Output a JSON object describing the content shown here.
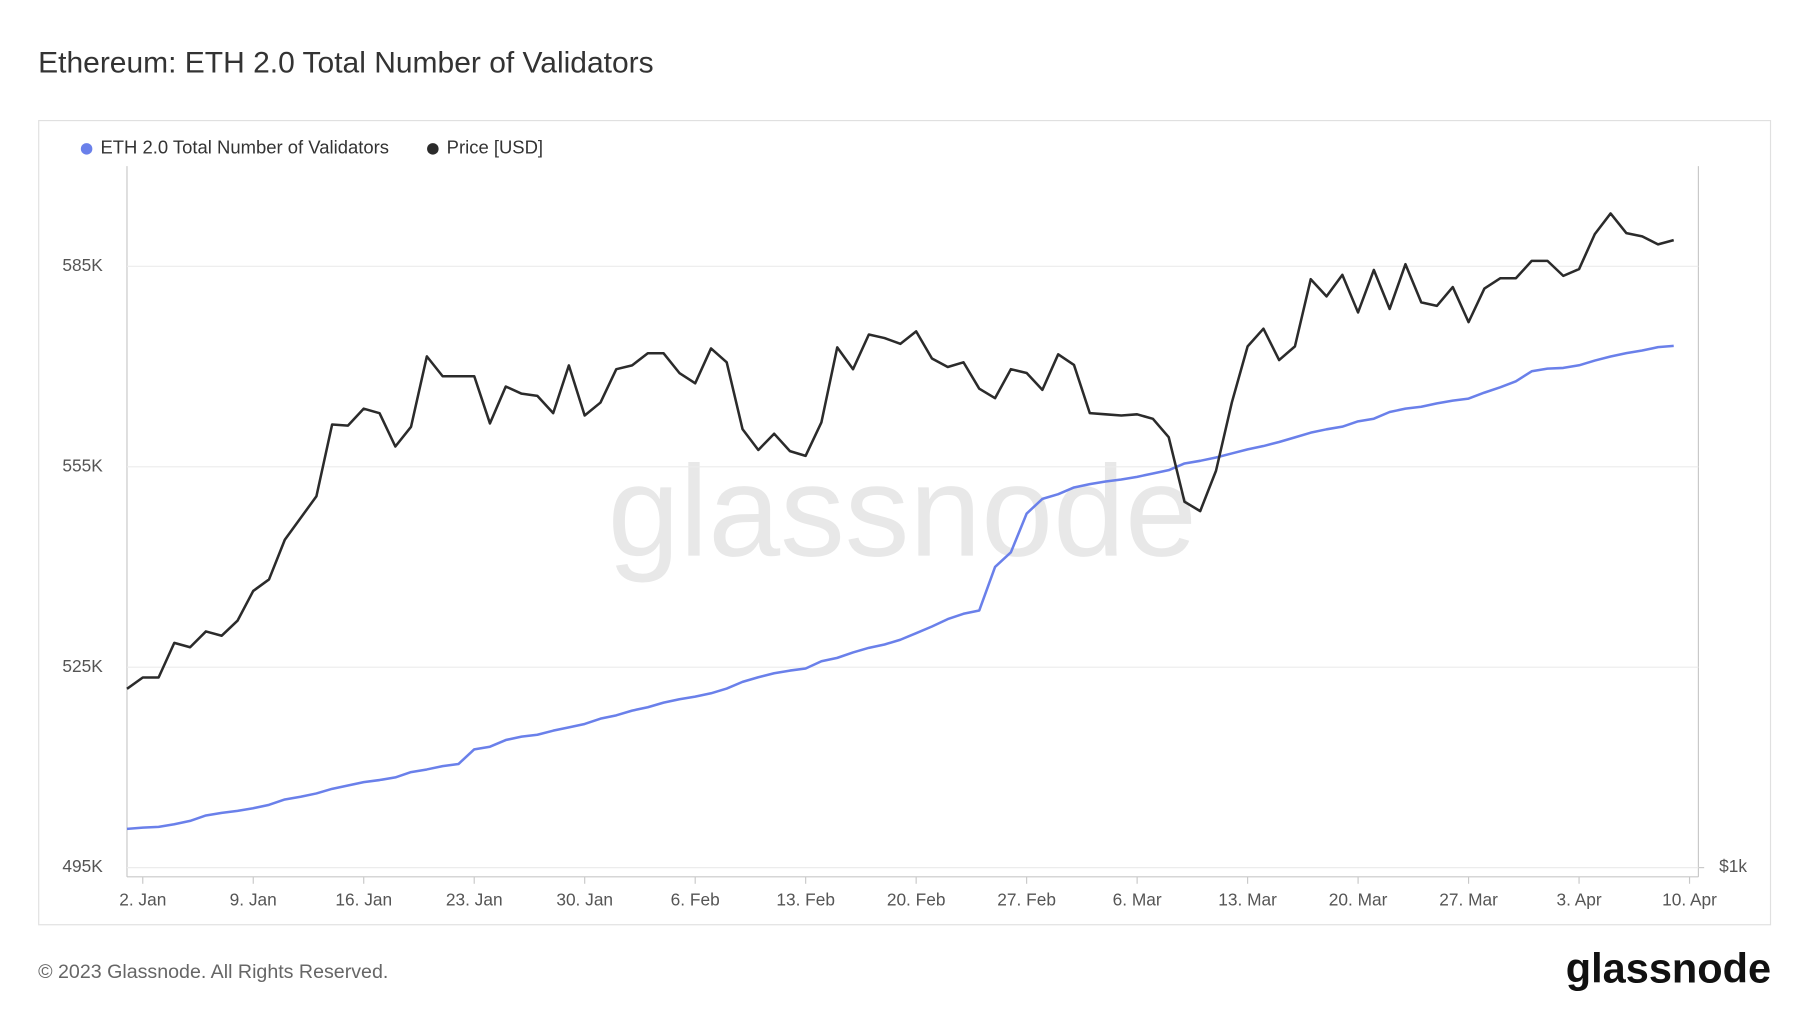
{
  "chart_data": {
    "type": "line",
    "title": "Ethereum: ETH 2.0 Total Number of Validators",
    "watermark": "glassnode",
    "x": [
      "1. Jan",
      "2. Jan",
      "3. Jan",
      "4. Jan",
      "5. Jan",
      "6. Jan",
      "7. Jan",
      "8. Jan",
      "9. Jan",
      "10. Jan",
      "11. Jan",
      "12. Jan",
      "13. Jan",
      "14. Jan",
      "15. Jan",
      "16. Jan",
      "17. Jan",
      "18. Jan",
      "19. Jan",
      "20. Jan",
      "21. Jan",
      "22. Jan",
      "23. Jan",
      "24. Jan",
      "25. Jan",
      "26. Jan",
      "27. Jan",
      "28. Jan",
      "29. Jan",
      "30. Jan",
      "31. Jan",
      "1. Feb",
      "2. Feb",
      "3. Feb",
      "4. Feb",
      "5. Feb",
      "6. Feb",
      "7. Feb",
      "8. Feb",
      "9. Feb",
      "10. Feb",
      "11. Feb",
      "12. Feb",
      "13. Feb",
      "14. Feb",
      "15. Feb",
      "16. Feb",
      "17. Feb",
      "18. Feb",
      "19. Feb",
      "20. Feb",
      "21. Feb",
      "22. Feb",
      "23. Feb",
      "24. Feb",
      "25. Feb",
      "26. Feb",
      "27. Feb",
      "28. Feb",
      "1. Mar",
      "2. Mar",
      "3. Mar",
      "4. Mar",
      "5. Mar",
      "6. Mar",
      "7. Mar",
      "8. Mar",
      "9. Mar",
      "10. Mar",
      "11. Mar",
      "12. Mar",
      "13. Mar",
      "14. Mar",
      "15. Mar",
      "16. Mar",
      "17. Mar",
      "18. Mar",
      "19. Mar",
      "20. Mar",
      "21. Mar",
      "22. Mar",
      "23. Mar",
      "24. Mar",
      "25. Mar",
      "26. Mar",
      "27. Mar",
      "28. Mar",
      "29. Mar",
      "30. Mar",
      "31. Mar",
      "1. Apr",
      "2. Apr",
      "3. Apr",
      "4. Apr",
      "5. Apr",
      "6. Apr",
      "7. Apr",
      "8. Apr",
      "9. Apr"
    ],
    "xticks": [
      "2. Jan",
      "9. Jan",
      "16. Jan",
      "23. Jan",
      "30. Jan",
      "6. Feb",
      "13. Feb",
      "20. Feb",
      "27. Feb",
      "6. Mar",
      "13. Mar",
      "20. Mar",
      "27. Mar",
      "3. Apr",
      "10. Apr"
    ],
    "series": [
      {
        "name": "ETH 2.0 Total Number of Validators",
        "color": "#6a80ea",
        "axis": "y",
        "values": [
          500800,
          501000,
          501100,
          501500,
          502000,
          502800,
          503200,
          503500,
          503900,
          504400,
          505200,
          505600,
          506100,
          506800,
          507300,
          507800,
          508100,
          508500,
          509300,
          509700,
          510200,
          510500,
          512700,
          513100,
          514100,
          514600,
          514900,
          515500,
          516000,
          516500,
          517300,
          517800,
          518500,
          519000,
          519700,
          520200,
          520600,
          521100,
          521800,
          522800,
          523500,
          524100,
          524500,
          524800,
          525900,
          526400,
          527200,
          527900,
          528400,
          529100,
          530100,
          531100,
          532200,
          533000,
          533500,
          540000,
          542200,
          548000,
          550200,
          550900,
          551900,
          552400,
          552800,
          553100,
          553500,
          554000,
          554500,
          555500,
          555900,
          556400,
          557000,
          557600,
          558100,
          558700,
          559400,
          560100,
          560600,
          561000,
          561800,
          562200,
          563200,
          563700,
          564000,
          564500,
          564900,
          565200,
          566100,
          566900,
          567800,
          569300,
          569700,
          569800,
          570200,
          570900,
          571500,
          572000,
          572400,
          572900,
          573100
        ]
      },
      {
        "name": "Price [USD]",
        "color": "#2b2b2b",
        "axis": "y2",
        "values": [
          1214,
          1229,
          1229,
          1276,
          1270,
          1292,
          1286,
          1307,
          1350,
          1367,
          1427,
          1461,
          1496,
          1617,
          1615,
          1645,
          1637,
          1579,
          1613,
          1741,
          1704,
          1704,
          1704,
          1619,
          1685,
          1672,
          1668,
          1637,
          1724,
          1633,
          1656,
          1717,
          1724,
          1747,
          1747,
          1710,
          1691,
          1756,
          1730,
          1609,
          1573,
          1601,
          1571,
          1563,
          1621,
          1758,
          1717,
          1783,
          1776,
          1765,
          1789,
          1737,
          1721,
          1730,
          1681,
          1664,
          1717,
          1710,
          1679,
          1745,
          1725,
          1637,
          1635,
          1633,
          1635,
          1627,
          1595,
          1487,
          1472,
          1538,
          1656,
          1760,
          1794,
          1734,
          1760,
          1893,
          1858,
          1902,
          1826,
          1912,
          1833,
          1924,
          1846,
          1839,
          1877,
          1807,
          1874,
          1895,
          1895,
          1931,
          1931,
          1900,
          1914,
          1988,
          2033,
          1990,
          1983,
          1966,
          1975
        ]
      }
    ],
    "ylim": [
      495000,
      600000
    ],
    "yticks": [
      {
        "value": 495000,
        "label": "495K"
      },
      {
        "value": 525000,
        "label": "525K"
      },
      {
        "value": 555000,
        "label": "555K"
      },
      {
        "value": 585000,
        "label": "585K"
      }
    ],
    "y2lim": [
      1000,
      2140
    ],
    "y2scale": "log",
    "y2ticks": [
      {
        "value": 1000,
        "label": "$1k"
      }
    ],
    "grid": true,
    "legend": "top-left"
  },
  "footer": {
    "copyright": "© 2023 Glassnode. All Rights Reserved.",
    "brand": "glassnode"
  }
}
